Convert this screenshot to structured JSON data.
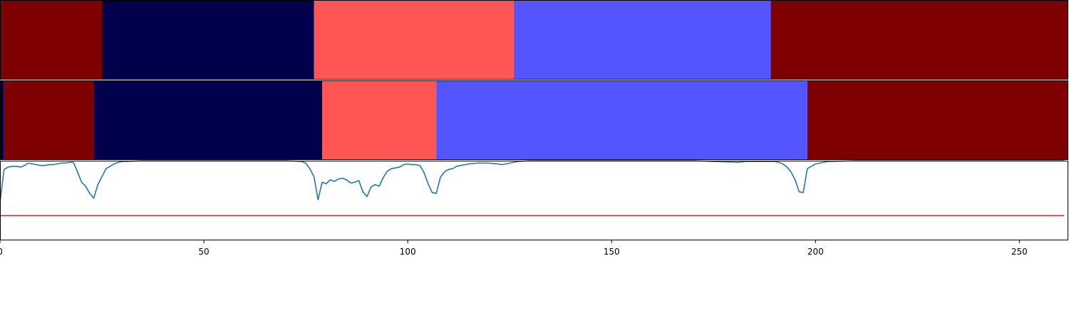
{
  "chart_data": [
    {
      "type": "heatmap",
      "panel": "top",
      "xlim": [
        0,
        262
      ],
      "segments": [
        {
          "start": 0,
          "end": 25,
          "color": "#7f0000"
        },
        {
          "start": 25,
          "end": 77,
          "color": "#00004c"
        },
        {
          "start": 77,
          "end": 126,
          "color": "#ff5555"
        },
        {
          "start": 126,
          "end": 189,
          "color": "#5555ff"
        },
        {
          "start": 189,
          "end": 262,
          "color": "#7f0000"
        }
      ]
    },
    {
      "type": "heatmap",
      "panel": "middle",
      "xlim": [
        0,
        262
      ],
      "segments": [
        {
          "start": 0,
          "end": 1,
          "color": "#00004c"
        },
        {
          "start": 1,
          "end": 23,
          "color": "#7f0000"
        },
        {
          "start": 23,
          "end": 79,
          "color": "#00004c"
        },
        {
          "start": 79,
          "end": 107,
          "color": "#ff5555"
        },
        {
          "start": 107,
          "end": 198,
          "color": "#5555ff"
        },
        {
          "start": 198,
          "end": 262,
          "color": "#7f0000"
        }
      ]
    },
    {
      "type": "line",
      "panel": "bottom",
      "xlim": [
        0,
        262
      ],
      "ylim": [
        0,
        1
      ],
      "x_ticks": [
        0,
        50,
        100,
        150,
        200,
        250
      ],
      "x_tick_labels": [
        "0",
        "50",
        "100",
        "150",
        "200",
        "250"
      ],
      "series": [
        {
          "color": "#1f77b4",
          "points": [
            [
              0,
              0.48
            ],
            [
              1,
              0.89
            ],
            [
              2,
              0.92
            ],
            [
              3,
              0.93
            ],
            [
              4,
              0.93
            ],
            [
              5,
              0.92
            ],
            [
              6,
              0.94
            ],
            [
              7,
              0.97
            ],
            [
              8,
              0.96
            ],
            [
              9,
              0.95
            ],
            [
              10,
              0.94
            ],
            [
              11,
              0.94
            ],
            [
              12,
              0.95
            ],
            [
              13,
              0.95
            ],
            [
              14,
              0.96
            ],
            [
              15,
              0.97
            ],
            [
              16,
              0.97
            ],
            [
              17,
              0.98
            ],
            [
              18,
              0.98
            ],
            [
              19,
              0.86
            ],
            [
              20,
              0.73
            ],
            [
              21,
              0.68
            ],
            [
              22,
              0.59
            ],
            [
              23,
              0.53
            ],
            [
              24,
              0.7
            ],
            [
              25,
              0.8
            ],
            [
              26,
              0.9
            ],
            [
              27,
              0.93
            ],
            [
              28,
              0.96
            ],
            [
              29,
              0.98
            ],
            [
              30,
              0.99
            ],
            [
              31,
              0.99
            ],
            [
              35,
              1.0
            ],
            [
              40,
              1.0
            ],
            [
              50,
              1.0
            ],
            [
              60,
              1.0
            ],
            [
              70,
              1.0
            ],
            [
              74,
              0.99
            ],
            [
              75,
              0.97
            ],
            [
              76,
              0.9
            ],
            [
              77,
              0.8
            ],
            [
              78,
              0.51
            ],
            [
              79,
              0.73
            ],
            [
              80,
              0.71
            ],
            [
              81,
              0.76
            ],
            [
              82,
              0.74
            ],
            [
              83,
              0.77
            ],
            [
              84,
              0.78
            ],
            [
              85,
              0.76
            ],
            [
              86,
              0.72
            ],
            [
              87,
              0.73
            ],
            [
              88,
              0.75
            ],
            [
              89,
              0.61
            ],
            [
              90,
              0.55
            ],
            [
              91,
              0.67
            ],
            [
              92,
              0.7
            ],
            [
              93,
              0.68
            ],
            [
              94,
              0.79
            ],
            [
              95,
              0.87
            ],
            [
              96,
              0.9
            ],
            [
              97,
              0.91
            ],
            [
              98,
              0.92
            ],
            [
              99,
              0.95
            ],
            [
              100,
              0.96
            ],
            [
              101,
              0.95
            ],
            [
              102,
              0.95
            ],
            [
              103,
              0.94
            ],
            [
              104,
              0.85
            ],
            [
              105,
              0.71
            ],
            [
              106,
              0.6
            ],
            [
              107,
              0.59
            ],
            [
              108,
              0.79
            ],
            [
              109,
              0.86
            ],
            [
              110,
              0.89
            ],
            [
              111,
              0.9
            ],
            [
              112,
              0.93
            ],
            [
              113,
              0.94
            ],
            [
              114,
              0.95
            ],
            [
              115,
              0.96
            ],
            [
              117,
              0.97
            ],
            [
              120,
              0.97
            ],
            [
              122,
              0.96
            ],
            [
              123,
              0.95
            ],
            [
              125,
              0.97
            ],
            [
              127,
              0.99
            ],
            [
              130,
              1.0
            ],
            [
              140,
              1.0
            ],
            [
              150,
              1.0
            ],
            [
              160,
              1.0
            ],
            [
              170,
              1.0
            ],
            [
              175,
              0.99
            ],
            [
              181,
              0.98
            ],
            [
              183,
              0.99
            ],
            [
              190,
              0.99
            ],
            [
              191,
              0.98
            ],
            [
              192,
              0.96
            ],
            [
              193,
              0.92
            ],
            [
              194,
              0.86
            ],
            [
              195,
              0.76
            ],
            [
              196,
              0.61
            ],
            [
              197,
              0.6
            ],
            [
              198,
              0.9
            ],
            [
              199,
              0.93
            ],
            [
              200,
              0.96
            ],
            [
              201,
              0.97
            ],
            [
              202,
              0.98
            ],
            [
              203,
              0.99
            ],
            [
              210,
              1.0
            ],
            [
              220,
              1.0
            ],
            [
              230,
              1.0
            ],
            [
              240,
              1.0
            ],
            [
              250,
              1.0
            ],
            [
              261,
              1.0
            ]
          ]
        },
        {
          "color": "#d62728",
          "points": [
            [
              0,
              0.31
            ],
            [
              261,
              0.31
            ]
          ]
        }
      ]
    }
  ]
}
